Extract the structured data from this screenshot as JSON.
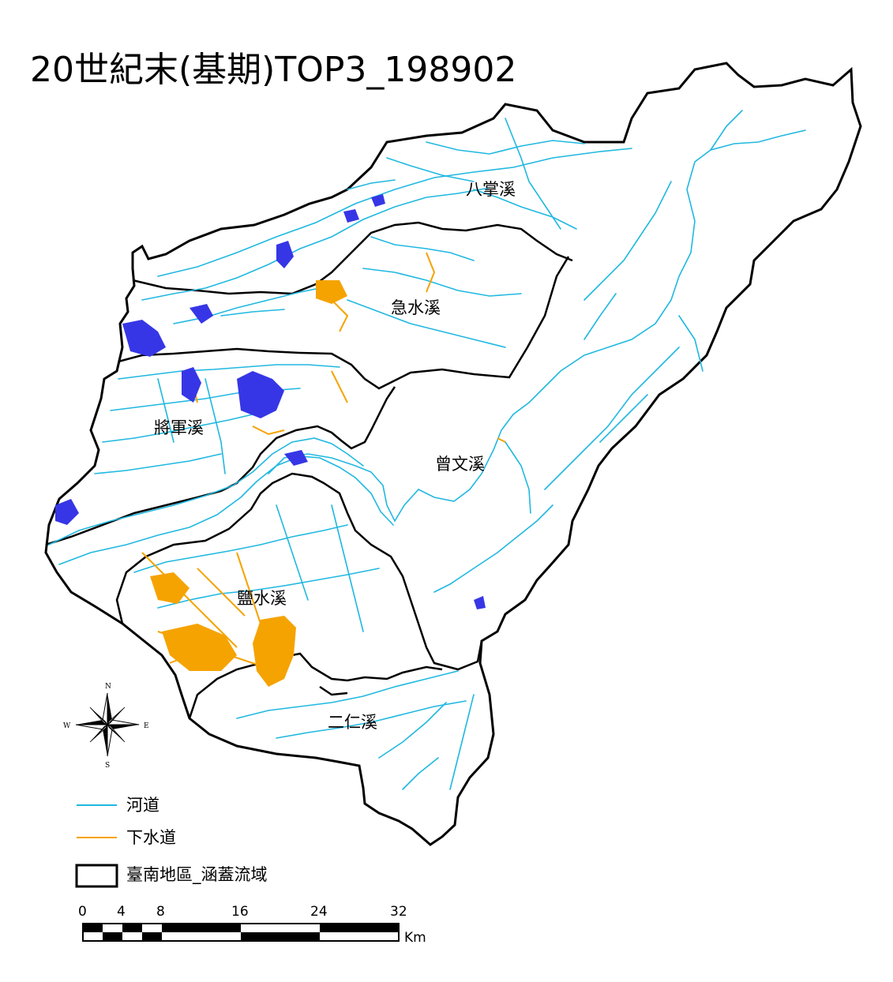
{
  "title": "20世紀末(基期)TOP3_198902",
  "colors": {
    "river": "#20b8e0",
    "sewer": "#f5a300",
    "flood": "#3636e6",
    "boundary": "#000000"
  },
  "basins": [
    {
      "id": "bazhang",
      "label": "八掌溪"
    },
    {
      "id": "jishui",
      "label": "急水溪"
    },
    {
      "id": "jiangjun",
      "label": "將軍溪"
    },
    {
      "id": "zengwen",
      "label": "曾文溪"
    },
    {
      "id": "yanshui",
      "label": "鹽水溪"
    },
    {
      "id": "erren",
      "label": "二仁溪"
    }
  ],
  "legend": {
    "river": "河道",
    "sewer": "下水道",
    "boundary": "臺南地區_涵蓋流域"
  },
  "compass": {
    "n": "N",
    "s": "S",
    "e": "E",
    "w": "W"
  },
  "scale_bar": {
    "ticks": [
      "0",
      "4",
      "8",
      "16",
      "24",
      "32"
    ],
    "unit": "Km"
  }
}
